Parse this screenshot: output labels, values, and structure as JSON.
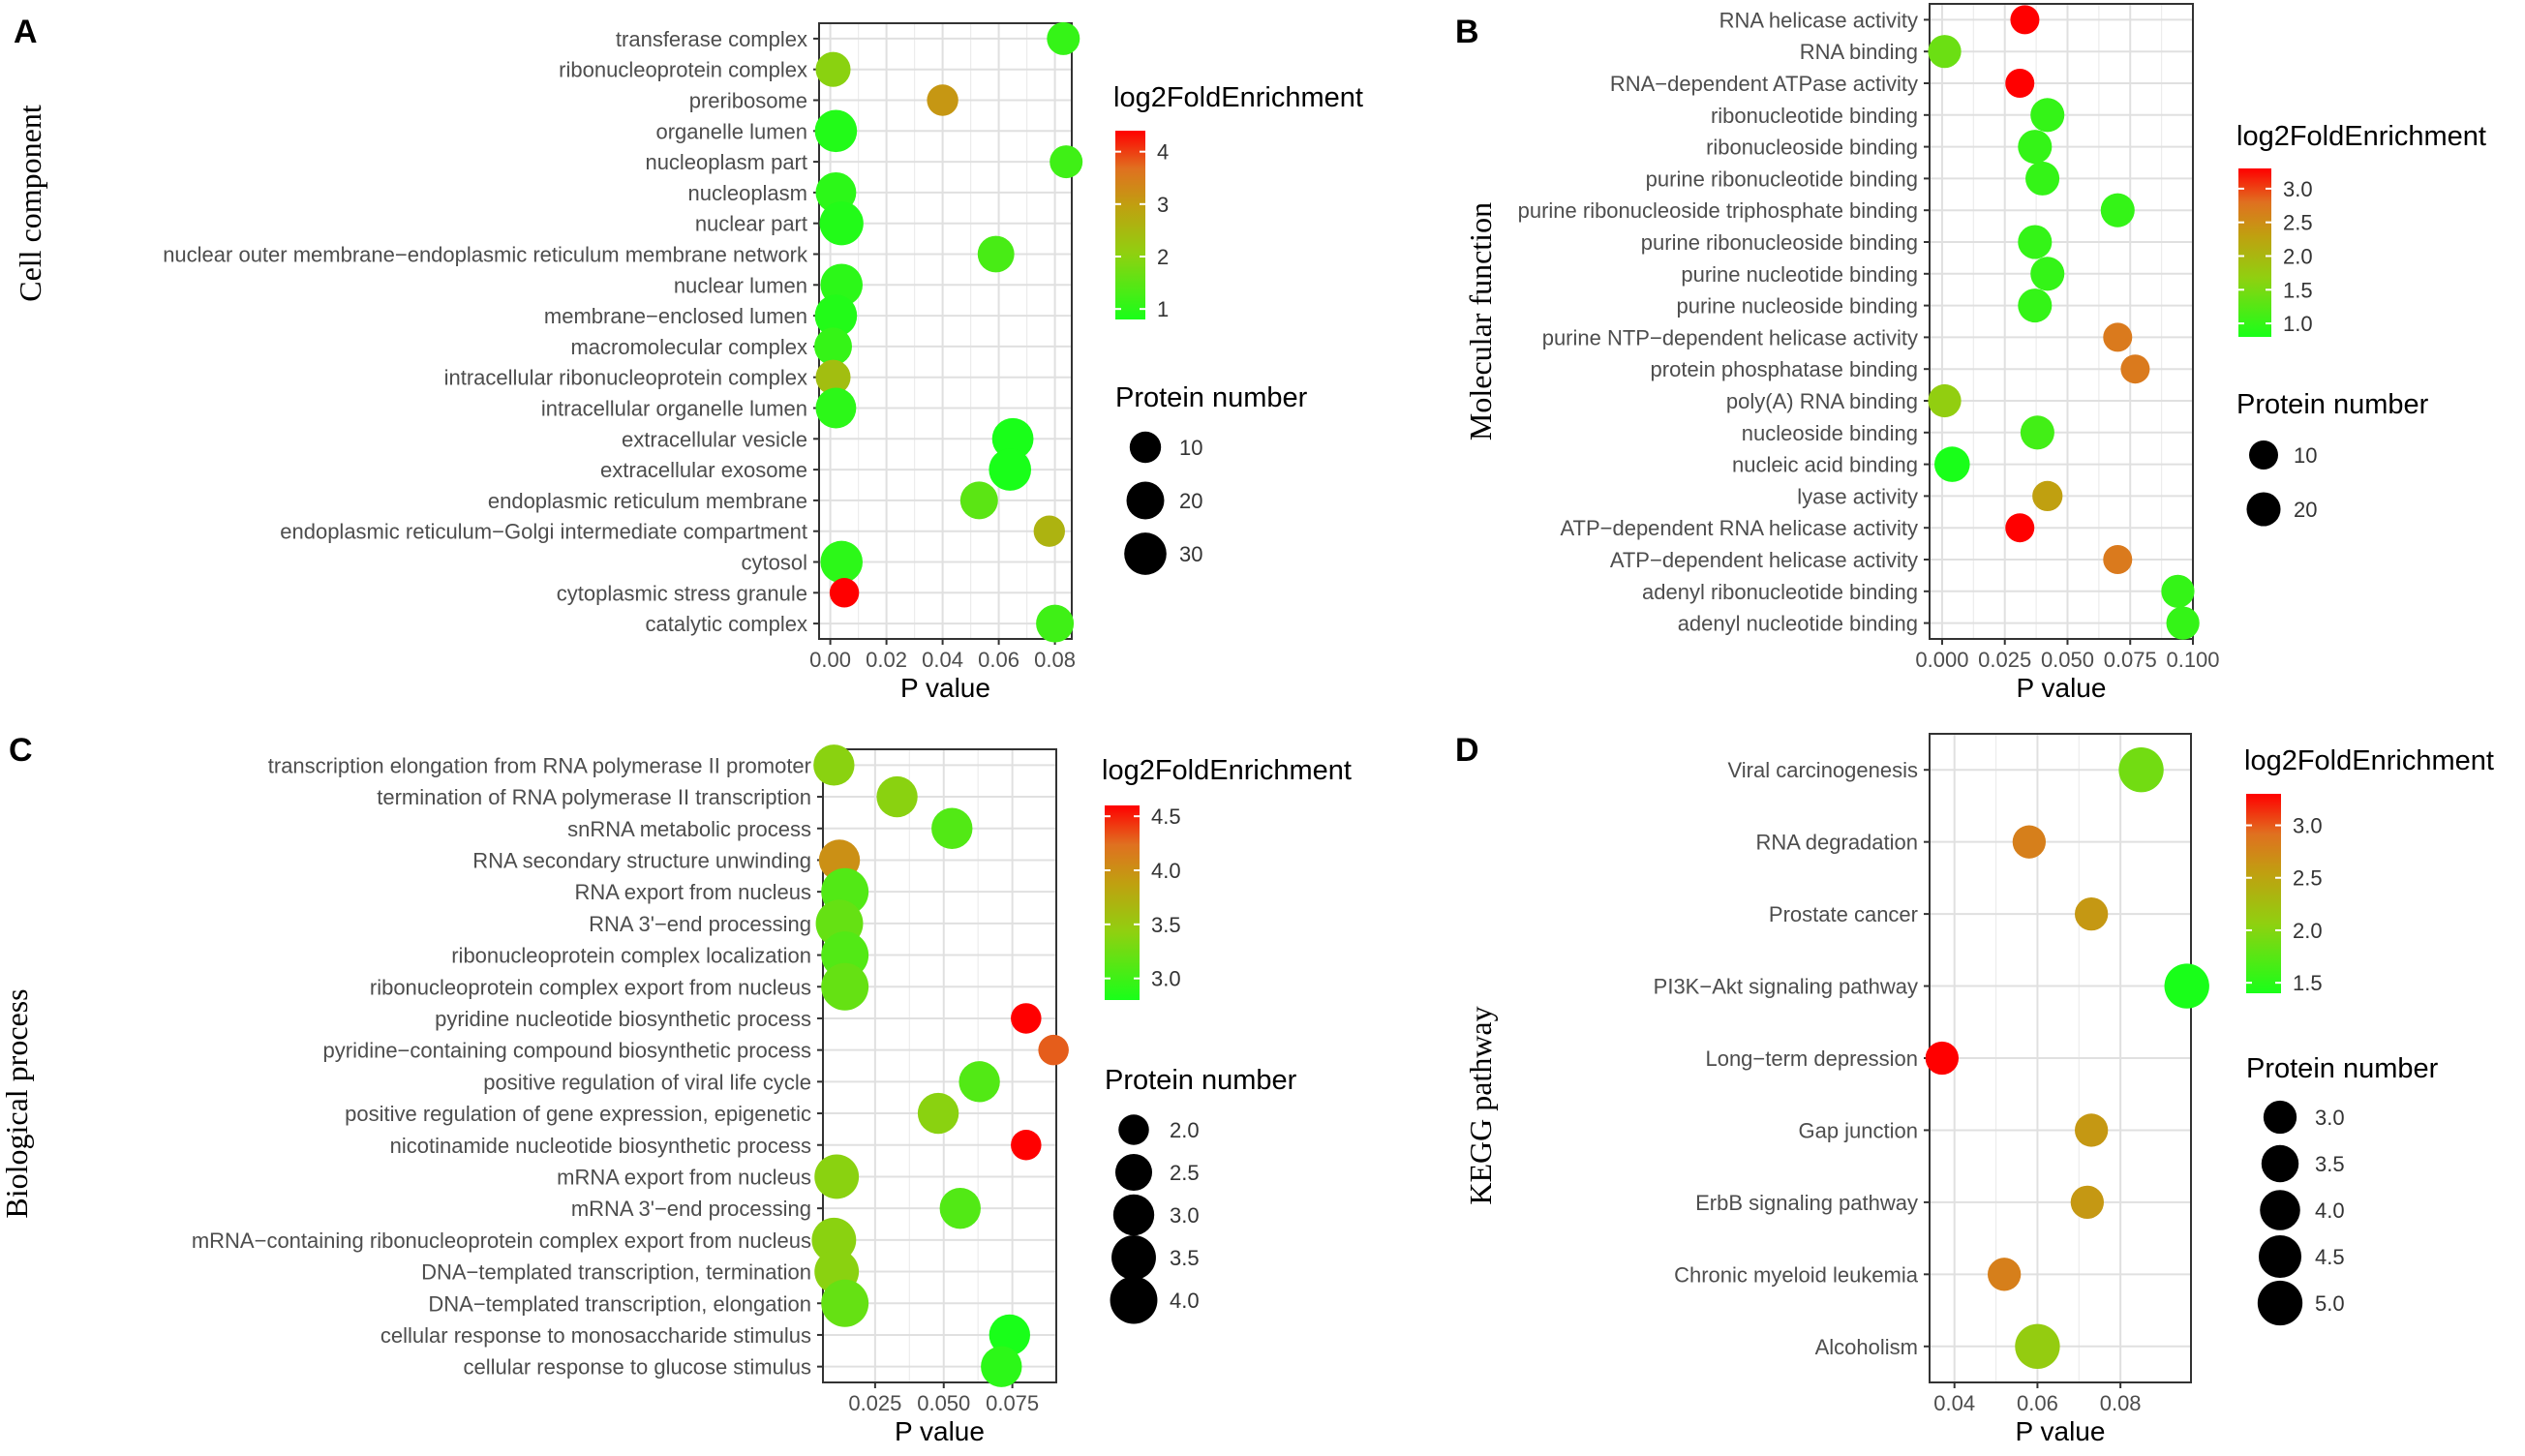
{
  "chart_data": [
    {
      "type": "scatter",
      "panel_label": "A",
      "ylabel": "Cell component",
      "xlabel": "P value",
      "xlim": [
        -0.004,
        0.086
      ],
      "xticks": [
        0.0,
        0.02,
        0.04,
        0.06,
        0.08
      ],
      "xtick_labels": [
        "0.00",
        "0.02",
        "0.04",
        "0.06",
        "0.08"
      ],
      "color_legend": {
        "title": "log2FoldEnrichment",
        "range": [
          0.8,
          4.4
        ],
        "ticks": [
          1,
          2,
          3,
          4
        ],
        "tick_labels": [
          "1",
          "2",
          "3",
          "4"
        ]
      },
      "size_legend": {
        "title": "Protein number",
        "range": [
          4,
          36
        ],
        "values": [
          10,
          20,
          30
        ],
        "labels": [
          "10",
          "20",
          "30"
        ]
      },
      "categories": [
        "transferase complex",
        "ribonucleoprotein complex",
        "preribosome",
        "organelle lumen",
        "nucleoplasm part",
        "nucleoplasm",
        "nuclear part",
        "nuclear outer membrane−endoplasmic reticulum membrane network",
        "nuclear lumen",
        "membrane−enclosed lumen",
        "macromolecular complex",
        "intracellular ribonucleoprotein complex",
        "intracellular organelle lumen",
        "extracellular vesicle",
        "extracellular exosome",
        "endoplasmic reticulum membrane",
        "endoplasmic reticulum−Golgi intermediate compartment",
        "cytosol",
        "cytoplasmic stress granule",
        "catalytic complex"
      ],
      "x": [
        0.083,
        0.001,
        0.04,
        0.002,
        0.084,
        0.002,
        0.004,
        0.059,
        0.004,
        0.002,
        0.001,
        0.001,
        0.002,
        0.065,
        0.064,
        0.053,
        0.078,
        0.004,
        0.005,
        0.08
      ],
      "color_values": [
        1.1,
        2.0,
        3.1,
        0.9,
        1.2,
        1.0,
        0.9,
        1.3,
        1.0,
        0.9,
        1.1,
        2.4,
        1.0,
        0.8,
        0.8,
        1.5,
        2.6,
        1.0,
        4.4,
        1.2
      ],
      "size_values": [
        12,
        15,
        10,
        30,
        12,
        26,
        34,
        18,
        30,
        30,
        20,
        15,
        26,
        28,
        30,
        20,
        10,
        30,
        8,
        20
      ]
    },
    {
      "type": "scatter",
      "panel_label": "B",
      "ylabel": "Molecular function",
      "xlabel": "P value",
      "xlim": [
        -0.005,
        0.1
      ],
      "xticks": [
        0.0,
        0.025,
        0.05,
        0.075,
        0.1
      ],
      "xtick_labels": [
        "0.000",
        "0.025",
        "0.050",
        "0.075",
        "0.100"
      ],
      "color_legend": {
        "title": "log2FoldEnrichment",
        "range": [
          0.8,
          3.3
        ],
        "ticks": [
          1.0,
          1.5,
          2.0,
          2.5,
          3.0
        ],
        "tick_labels": [
          "1.0",
          "1.5",
          "2.0",
          "2.5",
          "3.0"
        ]
      },
      "size_legend": {
        "title": "Protein number",
        "range": [
          4,
          28
        ],
        "values": [
          10,
          20
        ],
        "labels": [
          "10",
          "20"
        ]
      },
      "categories": [
        "RNA helicase activity",
        "RNA binding",
        "RNA−dependent ATPase activity",
        "ribonucleotide binding",
        "ribonucleoside binding",
        "purine ribonucleotide binding",
        "purine ribonucleoside triphosphate binding",
        "purine ribonucleoside binding",
        "purine nucleotide binding",
        "purine nucleoside binding",
        "purine NTP−dependent helicase activity",
        "protein phosphatase binding",
        "poly(A) RNA binding",
        "nucleoside binding",
        "nucleic acid binding",
        "lyase activity",
        "ATP−dependent RNA helicase activity",
        "ATP−dependent helicase activity",
        "adenyl ribonucleotide binding",
        "adenyl nucleotide binding"
      ],
      "x": [
        0.033,
        0.001,
        0.031,
        0.042,
        0.037,
        0.04,
        0.07,
        0.037,
        0.042,
        0.037,
        0.07,
        0.077,
        0.001,
        0.038,
        0.004,
        0.042,
        0.031,
        0.07,
        0.094,
        0.096
      ],
      "color_values": [
        3.3,
        1.4,
        3.3,
        1.0,
        1.0,
        1.0,
        1.0,
        1.0,
        1.0,
        1.0,
        2.7,
        2.7,
        1.7,
        1.1,
        0.8,
        2.3,
        3.3,
        2.7,
        1.0,
        1.0
      ],
      "size_values": [
        10,
        18,
        10,
        20,
        20,
        20,
        20,
        20,
        20,
        20,
        10,
        10,
        18,
        20,
        24,
        12,
        10,
        10,
        18,
        18
      ]
    },
    {
      "type": "scatter",
      "panel_label": "C",
      "ylabel": "Biological process",
      "xlabel": "P value",
      "xlim": [
        0.006,
        0.091
      ],
      "xticks": [
        0.025,
        0.05,
        0.075
      ],
      "xtick_labels": [
        "0.025",
        "0.050",
        "0.075"
      ],
      "color_legend": {
        "title": "log2FoldEnrichment",
        "range": [
          2.8,
          4.6
        ],
        "ticks": [
          3.0,
          3.5,
          4.0,
          4.5
        ],
        "tick_labels": [
          "3.0",
          "3.5",
          "4.0",
          "4.5"
        ]
      },
      "size_legend": {
        "title": "Protein number",
        "range": [
          1.8,
          4.2
        ],
        "values": [
          2.0,
          2.5,
          3.0,
          3.5,
          4.0
        ],
        "labels": [
          "2.0",
          "2.5",
          "3.0",
          "3.5",
          "4.0"
        ]
      },
      "categories": [
        "transcription elongation from RNA polymerase II promoter",
        "termination of RNA polymerase II transcription",
        "snRNA metabolic process",
        "RNA secondary structure unwinding",
        "RNA export from nucleus",
        "RNA 3'−end processing",
        "ribonucleoprotein complex localization",
        "ribonucleoprotein complex export from nucleus",
        "pyridine nucleotide biosynthetic process",
        "pyridine−containing compound biosynthetic process",
        "positive regulation of viral life cycle",
        "positive regulation of gene expression, epigenetic",
        "nicotinamide nucleotide biosynthetic process",
        "mRNA export from nucleus",
        "mRNA 3'−end processing",
        "mRNA−containing ribonucleoprotein complex export from nucleus",
        "DNA−templated transcription, termination",
        "DNA−templated transcription, elongation",
        "cellular response to monosaccharide stimulus",
        "cellular response to glucose stimulus"
      ],
      "x": [
        0.01,
        0.033,
        0.053,
        0.012,
        0.014,
        0.012,
        0.014,
        0.014,
        0.08,
        0.09,
        0.063,
        0.048,
        0.08,
        0.011,
        0.056,
        0.01,
        0.011,
        0.014,
        0.074,
        0.071
      ],
      "color_values": [
        3.4,
        3.4,
        3.1,
        4.0,
        3.1,
        3.2,
        3.1,
        3.2,
        4.6,
        4.3,
        3.1,
        3.4,
        4.6,
        3.4,
        3.1,
        3.4,
        3.4,
        3.2,
        2.8,
        2.9
      ],
      "size_values": [
        3.0,
        3.0,
        3.0,
        3.0,
        4.0,
        4.0,
        4.0,
        4.0,
        2.0,
        2.0,
        3.0,
        3.0,
        2.0,
        3.5,
        3.0,
        3.5,
        3.5,
        4.0,
        3.0,
        3.0
      ]
    },
    {
      "type": "scatter",
      "panel_label": "D",
      "ylabel": "KEGG pathway",
      "xlabel": "P value",
      "xlim": [
        0.034,
        0.097
      ],
      "xticks": [
        0.04,
        0.06,
        0.08
      ],
      "xtick_labels": [
        "0.04",
        "0.06",
        "0.08"
      ],
      "color_legend": {
        "title": "log2FoldEnrichment",
        "range": [
          1.4,
          3.3
        ],
        "ticks": [
          1.5,
          2.0,
          2.5,
          3.0
        ],
        "tick_labels": [
          "1.5",
          "2.0",
          "2.5",
          "3.0"
        ]
      },
      "size_legend": {
        "title": "Protein number",
        "range": [
          2.6,
          5.4
        ],
        "values": [
          3.0,
          3.5,
          4.0,
          4.5,
          5.0
        ],
        "labels": [
          "3.0",
          "3.5",
          "4.0",
          "4.5",
          "5.0"
        ]
      },
      "categories": [
        "Viral carcinogenesis",
        "RNA degradation",
        "Prostate cancer",
        "PI3K−Akt signaling pathway",
        "Long−term depression",
        "Gap junction",
        "ErbB signaling pathway",
        "Chronic myeloid leukemia",
        "Alcoholism"
      ],
      "x": [
        0.085,
        0.058,
        0.073,
        0.096,
        0.037,
        0.073,
        0.072,
        0.052,
        0.06
      ],
      "color_values": [
        1.9,
        2.8,
        2.6,
        1.4,
        3.3,
        2.6,
        2.6,
        2.8,
        2.1
      ],
      "size_values": [
        5.0,
        3.0,
        3.0,
        5.0,
        3.0,
        3.0,
        3.0,
        3.0,
        5.0
      ]
    }
  ]
}
